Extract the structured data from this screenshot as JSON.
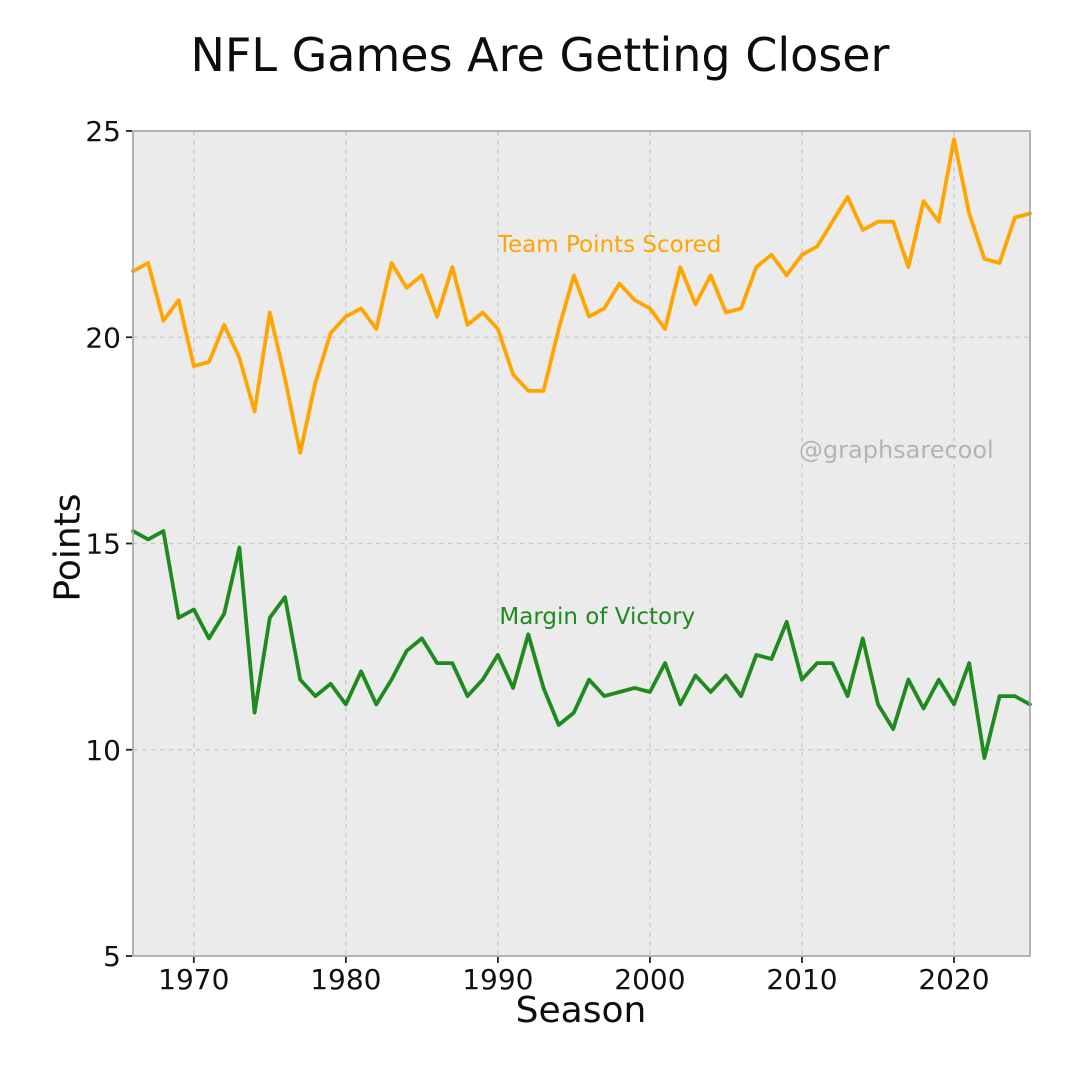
{
  "chart_data": {
    "type": "line",
    "title": "NFL Games Are Getting Closer",
    "xlabel": "Season",
    "ylabel": "Points",
    "xlim": [
      1966,
      2025
    ],
    "ylim": [
      5,
      25
    ],
    "xticks": [
      1970,
      1980,
      1990,
      2000,
      2010,
      2020
    ],
    "yticks": [
      5,
      10,
      15,
      20,
      25
    ],
    "grid": "dashed-gray-both-axes",
    "legend_position": "inline-annotations",
    "plot_bg_color": "#ebebeb",
    "grid_color": "#c8c8c8",
    "spine_color": "#a2a2a2",
    "tick_color": "#222222",
    "x": [
      1966,
      1967,
      1968,
      1969,
      1970,
      1971,
      1972,
      1973,
      1974,
      1975,
      1976,
      1977,
      1978,
      1979,
      1980,
      1981,
      1982,
      1983,
      1984,
      1985,
      1986,
      1987,
      1988,
      1989,
      1990,
      1991,
      1992,
      1993,
      1994,
      1995,
      1996,
      1997,
      1998,
      1999,
      2000,
      2001,
      2002,
      2003,
      2004,
      2005,
      2006,
      2007,
      2008,
      2009,
      2010,
      2011,
      2012,
      2013,
      2014,
      2015,
      2016,
      2017,
      2018,
      2019,
      2020,
      2021,
      2022,
      2023,
      2024,
      2025
    ],
    "series": [
      {
        "name": "Team Points Scored",
        "color": "#FFA500",
        "values": [
          21.6,
          21.8,
          20.4,
          20.9,
          19.3,
          19.4,
          20.3,
          19.5,
          18.2,
          20.6,
          19.0,
          17.2,
          18.9,
          20.1,
          20.5,
          20.7,
          20.2,
          21.8,
          21.2,
          21.5,
          20.5,
          21.7,
          20.3,
          20.6,
          20.2,
          19.1,
          18.7,
          18.7,
          20.2,
          21.5,
          20.5,
          20.7,
          21.3,
          20.9,
          20.7,
          20.2,
          21.7,
          20.8,
          21.5,
          20.6,
          20.7,
          21.7,
          22.0,
          21.5,
          22.0,
          22.2,
          22.8,
          23.4,
          22.6,
          22.8,
          22.8,
          21.7,
          23.3,
          22.8,
          24.8,
          23.0,
          21.9,
          21.8,
          22.9,
          23.0
        ]
      },
      {
        "name": "Margin of Victory",
        "color": "#1f8b1f",
        "values": [
          15.3,
          15.1,
          15.3,
          13.2,
          13.4,
          12.7,
          13.3,
          14.9,
          10.9,
          13.2,
          13.7,
          11.7,
          11.3,
          11.6,
          11.1,
          11.9,
          11.1,
          11.7,
          12.4,
          12.7,
          12.1,
          12.1,
          11.3,
          11.7,
          12.3,
          11.5,
          12.8,
          11.5,
          10.6,
          10.9,
          11.7,
          11.3,
          11.4,
          11.5,
          11.4,
          12.1,
          11.1,
          11.8,
          11.4,
          11.8,
          11.3,
          12.3,
          12.2,
          13.1,
          11.7,
          12.1,
          12.1,
          11.3,
          12.7,
          11.1,
          10.5,
          11.7,
          11.0,
          11.7,
          11.1,
          12.1,
          9.8,
          11.3,
          11.3,
          11.1
        ]
      }
    ],
    "annotations": [
      {
        "text": "Team Points Scored",
        "x": 1990.0,
        "y": 22.52,
        "color": "#FFA500",
        "size": 23
      },
      {
        "text": "Margin of Victory",
        "x": 1990.1,
        "y": 13.5,
        "color": "#1f8b1f",
        "size": 23
      },
      {
        "text": "@graphsarecool",
        "x": 2009.8,
        "y": 17.55,
        "color": "#b4b4b4",
        "size": 24
      }
    ]
  }
}
